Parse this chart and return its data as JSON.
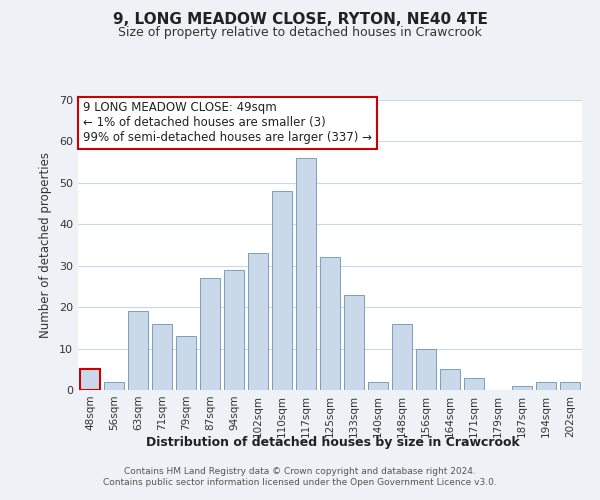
{
  "title": "9, LONG MEADOW CLOSE, RYTON, NE40 4TE",
  "subtitle": "Size of property relative to detached houses in Crawcrook",
  "xlabel": "Distribution of detached houses by size in Crawcrook",
  "ylabel": "Number of detached properties",
  "bar_labels": [
    "48sqm",
    "56sqm",
    "63sqm",
    "71sqm",
    "79sqm",
    "87sqm",
    "94sqm",
    "102sqm",
    "110sqm",
    "117sqm",
    "125sqm",
    "133sqm",
    "140sqm",
    "148sqm",
    "156sqm",
    "164sqm",
    "171sqm",
    "179sqm",
    "187sqm",
    "194sqm",
    "202sqm"
  ],
  "bar_values": [
    5,
    2,
    19,
    16,
    13,
    27,
    29,
    33,
    48,
    56,
    32,
    23,
    2,
    16,
    10,
    5,
    3,
    0,
    1,
    2,
    2
  ],
  "bar_color": "#c9d9ea",
  "bar_edge_color": "#7aa0bc",
  "highlight_bar_index": 0,
  "highlight_edge_color": "#cc0000",
  "ylim": [
    0,
    70
  ],
  "yticks": [
    0,
    10,
    20,
    30,
    40,
    50,
    60,
    70
  ],
  "annotation_title": "9 LONG MEADOW CLOSE: 49sqm",
  "annotation_line1": "← 1% of detached houses are smaller (3)",
  "annotation_line2": "99% of semi-detached houses are larger (337) →",
  "annotation_box_edge": "#cc0000",
  "footer_line1": "Contains HM Land Registry data © Crown copyright and database right 2024.",
  "footer_line2": "Contains public sector information licensed under the Open Government Licence v3.0.",
  "background_color": "#eef2f7",
  "plot_bg_color": "#ffffff",
  "grid_color": "#c8d8e8"
}
